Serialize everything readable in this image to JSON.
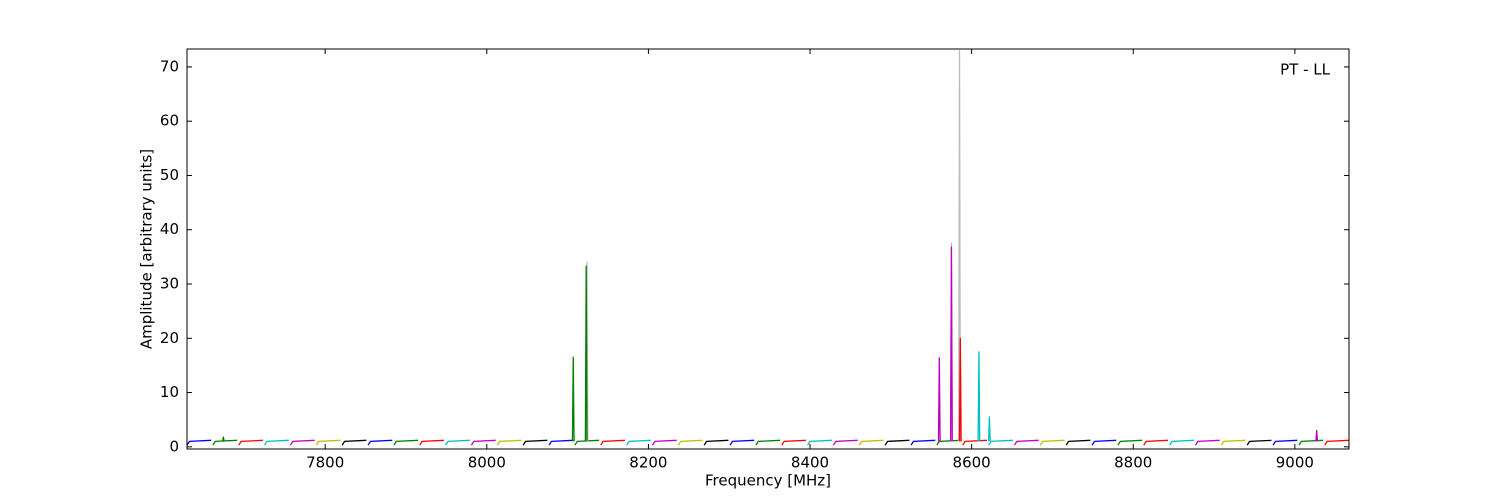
{
  "chart_data": {
    "type": "line",
    "annotation": "PT - LL",
    "x_label": "Frequency [MHz]",
    "y_label": "Amplitude [arbitrary units]",
    "xlim": [
      7629,
      9067
    ],
    "ylim": [
      -0.4,
      73.3
    ],
    "xticks": [
      7800,
      8000,
      8200,
      8400,
      8600,
      8800,
      9000
    ],
    "yticks": [
      0,
      10,
      20,
      30,
      40,
      50,
      60,
      70
    ],
    "series": [
      {
        "color": "#0000ff",
        "x": [
          7629,
          7632,
          7659,
          null,
          7853,
          7856,
          7883,
          null,
          8077,
          8080,
          8107,
          null,
          8301,
          8304,
          8331,
          null,
          8525,
          8528,
          8555,
          null,
          8749,
          8752,
          8779,
          null,
          8973,
          8976,
          9003
        ],
        "values": [
          0.3,
          1,
          1.2,
          null,
          0.3,
          1,
          1.2,
          null,
          0.3,
          1,
          1.2,
          null,
          0.3,
          1,
          1.2,
          null,
          0.3,
          1,
          1.2,
          null,
          0.3,
          1,
          1.2,
          null,
          0.3,
          1,
          1.2
        ]
      },
      {
        "color": "#008000",
        "x": [
          7661,
          7664,
          7691,
          null,
          7885,
          7888,
          7915,
          null,
          8109,
          8112,
          8139,
          null,
          8333,
          8336,
          8363,
          null,
          8557,
          8560,
          8587,
          null,
          8781,
          8784,
          8811,
          null,
          9005,
          9008,
          9035
        ],
        "values": [
          0.3,
          1,
          1.2,
          null,
          0.3,
          1,
          1.2,
          null,
          0.3,
          1,
          1.2,
          null,
          0.3,
          1,
          1.2,
          null,
          0.3,
          1,
          1.2,
          null,
          0.3,
          1,
          1.2,
          null,
          0.3,
          1,
          1.2
        ]
      },
      {
        "color": "#ff0000",
        "x": [
          7693,
          7696,
          7723,
          null,
          7917,
          7920,
          7947,
          null,
          8141,
          8144,
          8171,
          null,
          8365,
          8368,
          8395,
          null,
          8589,
          8592,
          8619,
          null,
          8813,
          8816,
          8843,
          null,
          9037,
          9040,
          9067
        ],
        "values": [
          0.3,
          1,
          1.2,
          null,
          0.3,
          1,
          1.2,
          null,
          0.3,
          1,
          1.2,
          null,
          0.3,
          1,
          1.2,
          null,
          0.3,
          1,
          1.2,
          null,
          0.3,
          1,
          1.2,
          null,
          0.3,
          1,
          1.2
        ]
      },
      {
        "color": "#00bfbf",
        "x": [
          7725,
          7728,
          7755,
          null,
          7949,
          7952,
          7979,
          null,
          8173,
          8176,
          8203,
          null,
          8397,
          8400,
          8427,
          null,
          8621,
          8624,
          8651,
          null,
          8845,
          8848,
          8875
        ],
        "values": [
          0.3,
          1,
          1.2,
          null,
          0.3,
          1,
          1.2,
          null,
          0.3,
          1,
          1.2,
          null,
          0.3,
          1,
          1.2,
          null,
          0.3,
          1,
          1.2,
          null,
          0.3,
          1,
          1.2
        ]
      },
      {
        "color": "#bf00bf",
        "x": [
          7757,
          7760,
          7787,
          null,
          7981,
          7984,
          8011,
          null,
          8205,
          8208,
          8235,
          null,
          8429,
          8432,
          8459,
          null,
          8653,
          8656,
          8683,
          null,
          8877,
          8880,
          8907
        ],
        "values": [
          0.3,
          1,
          1.2,
          null,
          0.3,
          1,
          1.2,
          null,
          0.3,
          1,
          1.2,
          null,
          0.3,
          1,
          1.2,
          null,
          0.3,
          1,
          1.2,
          null,
          0.3,
          1,
          1.2
        ]
      },
      {
        "color": "#bfbf00",
        "x": [
          7789,
          7792,
          7819,
          null,
          8013,
          8016,
          8043,
          null,
          8237,
          8240,
          8267,
          null,
          8461,
          8464,
          8491,
          null,
          8685,
          8688,
          8715,
          null,
          8909,
          8912,
          8939
        ],
        "values": [
          0.3,
          1,
          1.2,
          null,
          0.3,
          1,
          1.2,
          null,
          0.3,
          1,
          1.2,
          null,
          0.3,
          1,
          1.2,
          null,
          0.3,
          1,
          1.2,
          null,
          0.3,
          1,
          1.2
        ]
      },
      {
        "color": "#000000",
        "x": [
          7821,
          7824,
          7851,
          null,
          8045,
          8048,
          8075,
          null,
          8269,
          8272,
          8299,
          null,
          8493,
          8496,
          8523,
          null,
          8717,
          8720,
          8747,
          null,
          8941,
          8944,
          8971
        ],
        "values": [
          0.3,
          1,
          1.2,
          null,
          0.3,
          1,
          1.2,
          null,
          0.3,
          1,
          1.2,
          null,
          0.3,
          1,
          1.2,
          null,
          0.3,
          1,
          1.2,
          null,
          0.3,
          1,
          1.2
        ]
      },
      {
        "color": "#bbbbbb",
        "x": [
          8123,
          8124,
          8125,
          null,
          8574,
          8575,
          8576,
          null,
          8584,
          8585,
          8586
        ],
        "values": [
          1,
          34,
          1,
          null,
          1,
          37.5,
          1,
          null,
          1,
          73,
          1
        ]
      },
      {
        "color": "#008000",
        "x": [
          7673,
          7674,
          7675,
          null,
          8106,
          8107,
          8108,
          null,
          8122,
          8123,
          8124
        ],
        "values": [
          1,
          1.8,
          1,
          null,
          1,
          16.5,
          1,
          null,
          1,
          33.3,
          1
        ]
      },
      {
        "color": "#bf00bf",
        "x": [
          8559,
          8560,
          8561,
          null,
          8574,
          8575,
          8576,
          null,
          9026,
          9027,
          9028
        ],
        "values": [
          1,
          16.4,
          1,
          null,
          1,
          36.8,
          1,
          null,
          1,
          3,
          1
        ]
      },
      {
        "color": "#ff0000",
        "x": [
          8585,
          8586,
          8587
        ],
        "values": [
          1,
          20,
          1
        ]
      },
      {
        "color": "#00bfbf",
        "x": [
          8608,
          8609,
          8610,
          null,
          8621,
          8622,
          8623
        ],
        "values": [
          1,
          17.5,
          1,
          null,
          1,
          5.5,
          1
        ]
      }
    ]
  }
}
